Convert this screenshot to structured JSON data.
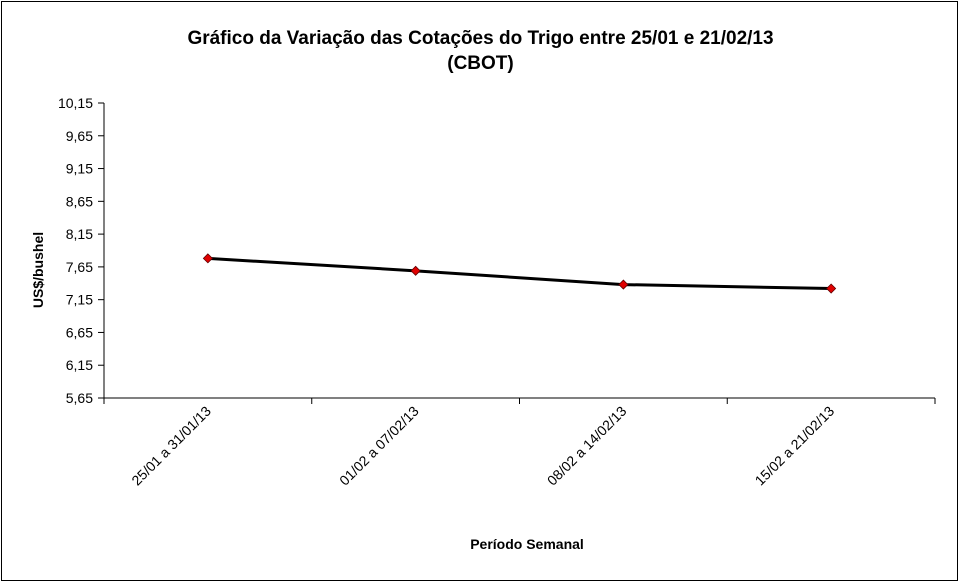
{
  "chart_data": {
    "type": "line",
    "title": "Gráfico da Variação das Cotações do Trigo entre 25/01 e 21/02/13",
    "subtitle": "(CBOT)",
    "xlabel": "Período Semanal",
    "ylabel": "US$/bushel",
    "categories": [
      "25/01 a 31/01/13",
      "01/02 a 07/02/13",
      "08/02 a 14/02/13",
      "15/02 a 21/02/13"
    ],
    "series": [
      {
        "values": [
          7.78,
          7.59,
          7.38,
          7.32
        ]
      }
    ],
    "ylim": [
      5.65,
      10.15
    ],
    "yticks": [
      5.65,
      6.15,
      6.65,
      7.15,
      7.65,
      8.15,
      8.65,
      9.15,
      9.65,
      10.15
    ],
    "ytick_labels": [
      "5,65",
      "6,15",
      "6,65",
      "7,15",
      "7,65",
      "8,15",
      "8,65",
      "9,15",
      "9,65",
      "10,15"
    ],
    "grid": false,
    "legend": "none",
    "colors": {
      "line": "#000000",
      "marker": "#e00000",
      "marker_edge": "#600000"
    }
  }
}
